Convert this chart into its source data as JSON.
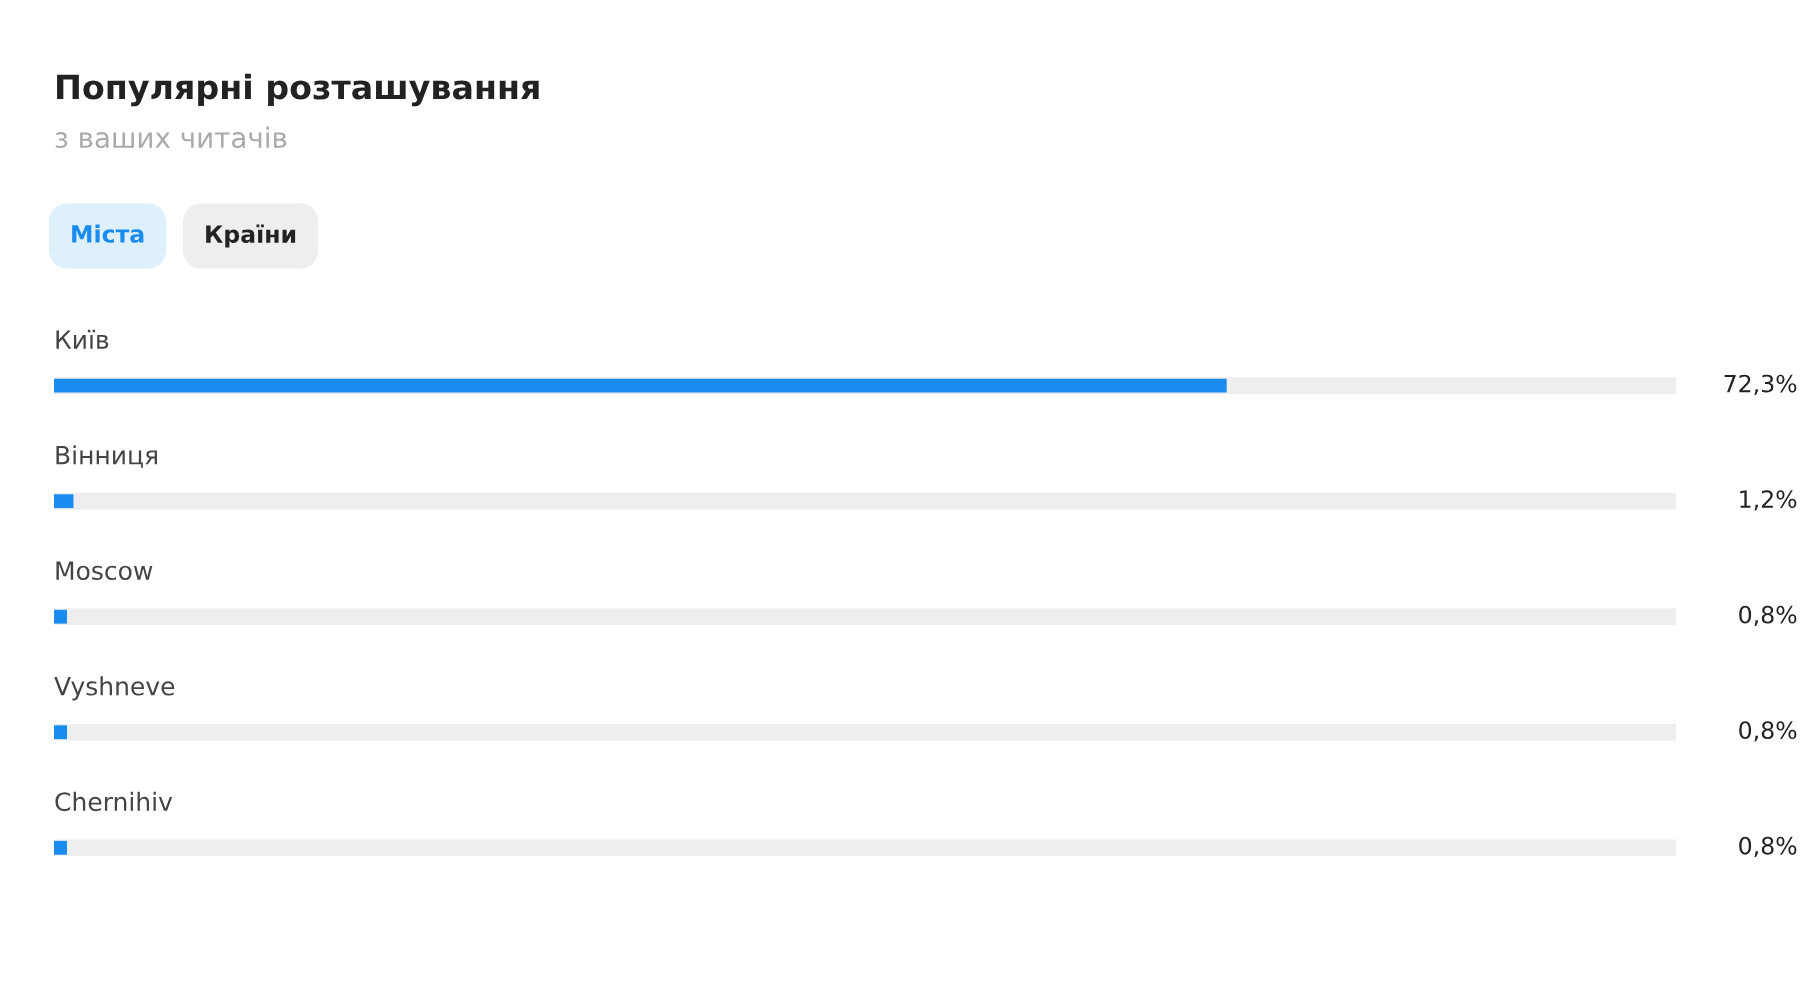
{
  "chart_data": {
    "type": "bar",
    "orientation": "horizontal",
    "title": "Популярні розташування",
    "subtitle": "з ваших читачів",
    "annotations": [
      "Міста",
      "Країни"
    ],
    "categories": [
      "Київ",
      "Вінниця",
      "Moscow",
      "Vyshneve",
      "Chernihiv"
    ],
    "values": [
      72.3,
      1.2,
      0.8,
      0.8,
      0.8
    ],
    "value_labels": [
      "72,3%",
      "1,2%",
      "0,8%",
      "0,8%",
      "0,8%"
    ],
    "color": "#1a8cf0",
    "xlim": [
      0,
      100
    ],
    "tick_labels": false
  }
}
